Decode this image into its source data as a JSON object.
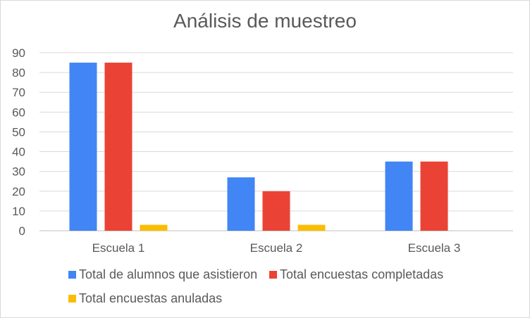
{
  "chart_data": {
    "type": "bar",
    "title": "Análisis de muestreo",
    "categories": [
      "Escuela 1",
      "Escuela 2",
      "Escuela 3"
    ],
    "series": [
      {
        "name": "Total de alumnos que asistieron",
        "values": [
          85,
          27,
          35
        ],
        "color": "#4285f4"
      },
      {
        "name": "Total encuestas completadas",
        "values": [
          85,
          20,
          35
        ],
        "color": "#ea4335"
      },
      {
        "name": "Total encuestas anuladas",
        "values": [
          3,
          3,
          0
        ],
        "color": "#fbbc04"
      }
    ],
    "ylim": [
      0,
      90
    ],
    "yticks": [
      0,
      10,
      20,
      30,
      40,
      50,
      60,
      70,
      80,
      90
    ],
    "xlabel": "",
    "ylabel": "",
    "grid": true,
    "legend": "bottom"
  }
}
